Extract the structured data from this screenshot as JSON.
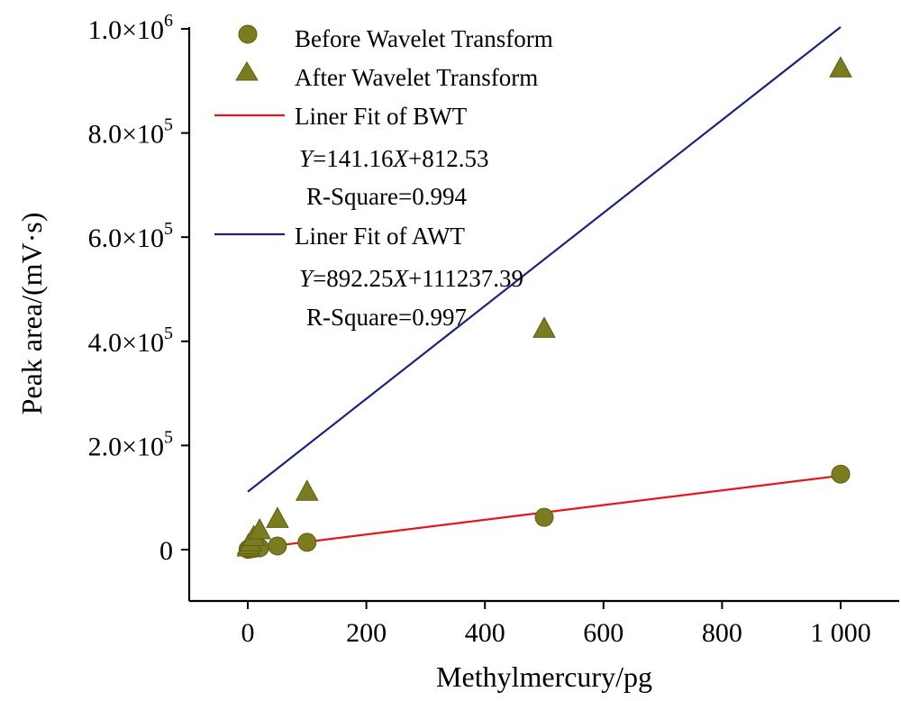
{
  "chart_data": {
    "type": "scatter",
    "xlabel": "Methylmercury/pg",
    "ylabel": "Peak area/(mV·s)",
    "xlim": [
      -100,
      1100
    ],
    "ylim": [
      -100000,
      1000000
    ],
    "xticks": [
      0,
      200,
      400,
      600,
      800,
      1000
    ],
    "xtick_labels": [
      "0",
      "200",
      "400",
      "600",
      "800",
      "1 000"
    ],
    "yticks": [
      0,
      200000,
      400000,
      600000,
      800000,
      1000000
    ],
    "ytick_labels": [
      {
        "mantissa": "0",
        "exp": ""
      },
      {
        "mantissa": "2.0×10",
        "exp": "5"
      },
      {
        "mantissa": "4.0×10",
        "exp": "5"
      },
      {
        "mantissa": "6.0×10",
        "exp": "5"
      },
      {
        "mantissa": "8.0×10",
        "exp": "5"
      },
      {
        "mantissa": "1.0×10",
        "exp": "6"
      }
    ],
    "grid": false,
    "legend_position": "top-left",
    "series": [
      {
        "name": "Before Wavelet Transform",
        "kind": "points",
        "marker": "circle",
        "color": "#7b7b1f",
        "x": [
          0.5,
          1,
          5,
          10,
          20,
          50,
          100,
          500,
          1000
        ],
        "y": [
          500,
          900,
          1500,
          2200,
          3500,
          7000,
          14000,
          62000,
          145000
        ]
      },
      {
        "name": "After Wavelet Transform",
        "kind": "points",
        "marker": "triangle",
        "color": "#7b7b1f",
        "x": [
          0.5,
          1,
          5,
          10,
          20,
          50,
          100,
          500,
          1000
        ],
        "y": [
          5000,
          9000,
          15000,
          25000,
          38000,
          60000,
          112000,
          425000,
          925000
        ]
      },
      {
        "name": "Liner Fit of BWT",
        "kind": "line",
        "color": "#e8141c",
        "slope": 141.16,
        "intercept": 812.53,
        "x": [
          0,
          1000
        ]
      },
      {
        "name": "Liner Fit of AWT",
        "kind": "line",
        "color": "#1a237e",
        "slope": 892.25,
        "intercept": 111237.39,
        "x": [
          0,
          1000
        ]
      }
    ],
    "annotations": {
      "bwt_equation": {
        "y": "Y",
        "mid": "=141.16",
        "x": "X",
        "rest": "+812.53"
      },
      "bwt_r2": "R-Square=0.994",
      "awt_equation": {
        "y": "Y",
        "mid": "=892.25",
        "x": "X",
        "rest": "+111237.39"
      },
      "awt_r2": "R-Square=0.997"
    }
  }
}
